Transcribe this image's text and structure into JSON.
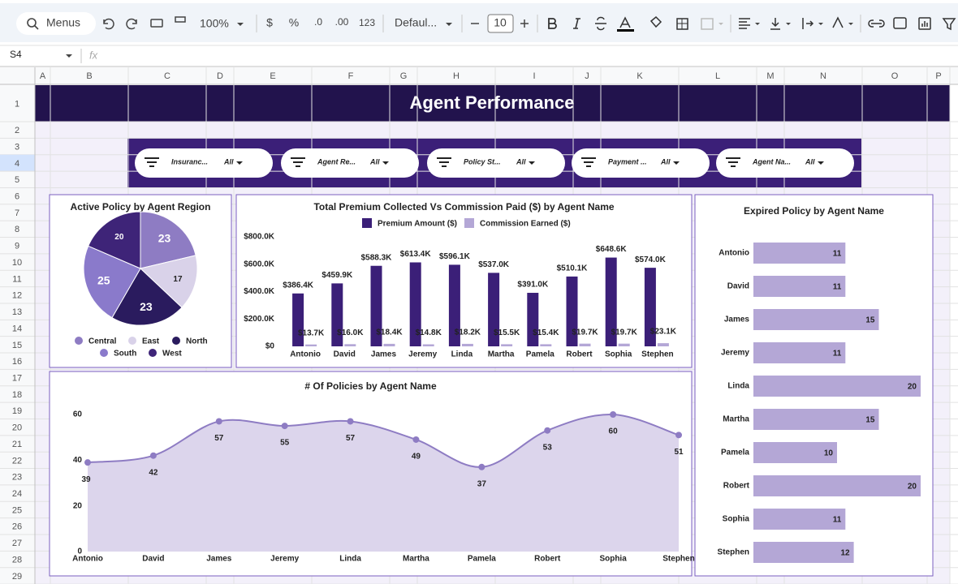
{
  "toolbar": {
    "search": "Menus",
    "zoom": "100%",
    "currency": "$",
    "percent": "%",
    "decrease_decimal": ".0",
    "increase_decimal": ".00",
    "number_format": "123",
    "font": "Defaul...",
    "font_size": "10"
  },
  "formula_bar": {
    "cell": "S4",
    "icon": "fx"
  },
  "columns": [
    "A",
    "B",
    "C",
    "D",
    "E",
    "F",
    "G",
    "H",
    "I",
    "J",
    "K",
    "L",
    "M",
    "N",
    "O",
    "P"
  ],
  "rows": [
    1,
    2,
    3,
    4,
    5,
    6,
    7,
    8,
    9,
    10,
    11,
    12,
    13,
    14,
    15,
    16,
    17,
    18,
    19,
    20,
    21,
    22,
    23,
    24,
    25,
    26,
    27,
    28,
    29
  ],
  "title": "Agent Performance",
  "filters": [
    {
      "name": "Insuranc...",
      "value": "All"
    },
    {
      "name": "Agent Re...",
      "value": "All"
    },
    {
      "name": "Policy St...",
      "value": "All"
    },
    {
      "name": "Payment ...",
      "value": "All"
    },
    {
      "name": "Agent Na...",
      "value": "All"
    }
  ],
  "chart_data": [
    {
      "type": "pie",
      "title": "Active Policy by Agent Region",
      "categories": [
        "Central",
        "East",
        "North",
        "South",
        "West"
      ],
      "values": [
        23,
        17,
        23,
        25,
        20
      ],
      "colors": [
        "#8e7cc3",
        "#d9d2e9",
        "#2a1b5e",
        "#8a7acb",
        "#3e2478"
      ],
      "legend": "bottom"
    },
    {
      "type": "bar",
      "title": "Total Premium Collected Vs Commission Paid ($) by Agent Name",
      "categories": [
        "Antonio",
        "David",
        "James",
        "Jeremy",
        "Linda",
        "Martha",
        "Pamela",
        "Robert",
        "Sophia",
        "Stephen"
      ],
      "series": [
        {
          "name": "Premium Amount ($)",
          "color": "#3b1f78",
          "values": [
            386400,
            459900,
            588300,
            613400,
            596100,
            537000,
            391000,
            510100,
            648600,
            574000
          ],
          "value_labels": [
            "$386.4K",
            "$459.9K",
            "$588.3K",
            "$613.4K",
            "$596.1K",
            "$537.0K",
            "$391.0K",
            "$510.1K",
            "$648.6K",
            "$574.0K"
          ]
        },
        {
          "name": "Commission Earned ($)",
          "color": "#b4a7d6",
          "values": [
            13700,
            16000,
            18400,
            14800,
            18200,
            15500,
            15400,
            19700,
            19700,
            23100
          ],
          "value_labels": [
            "$13.7K",
            "$16.0K",
            "$18.4K",
            "$14.8K",
            "$18.2K",
            "$15.5K",
            "$15.4K",
            "$19.7K",
            "$19.7K",
            "$23.1K"
          ]
        }
      ],
      "ylim": [
        0,
        800000
      ],
      "yticks": [
        {
          "value": 0,
          "label": "$0"
        },
        {
          "value": 200000,
          "label": "$200.0K"
        },
        {
          "value": 400000,
          "label": "$400.0K"
        },
        {
          "value": 600000,
          "label": "$600.0K"
        },
        {
          "value": 800000,
          "label": "$800.0K"
        }
      ],
      "grid": false,
      "legend": "top"
    },
    {
      "type": "area",
      "title": "# Of Policies by Agent Name",
      "categories": [
        "Antonio",
        "David",
        "James",
        "Jeremy",
        "Linda",
        "Martha",
        "Pamela",
        "Robert",
        "Sophia",
        "Stephen"
      ],
      "values": [
        39,
        42,
        57,
        55,
        57,
        49,
        37,
        53,
        60,
        51
      ],
      "color": "#8e7cc3",
      "fill": "#dcd5ec",
      "ylim": [
        0,
        60
      ],
      "yticks": [
        0,
        20,
        40,
        60
      ],
      "grid": false
    },
    {
      "type": "bar",
      "horizontal": true,
      "title": "Expired Policy by Agent Name",
      "categories": [
        "Antonio",
        "David",
        "James",
        "Jeremy",
        "Linda",
        "Martha",
        "Pamela",
        "Robert",
        "Sophia",
        "Stephen"
      ],
      "values": [
        11,
        11,
        15,
        11,
        20,
        15,
        10,
        20,
        11,
        12
      ],
      "color": "#b4a7d6",
      "xlim": [
        0,
        20
      ]
    }
  ]
}
